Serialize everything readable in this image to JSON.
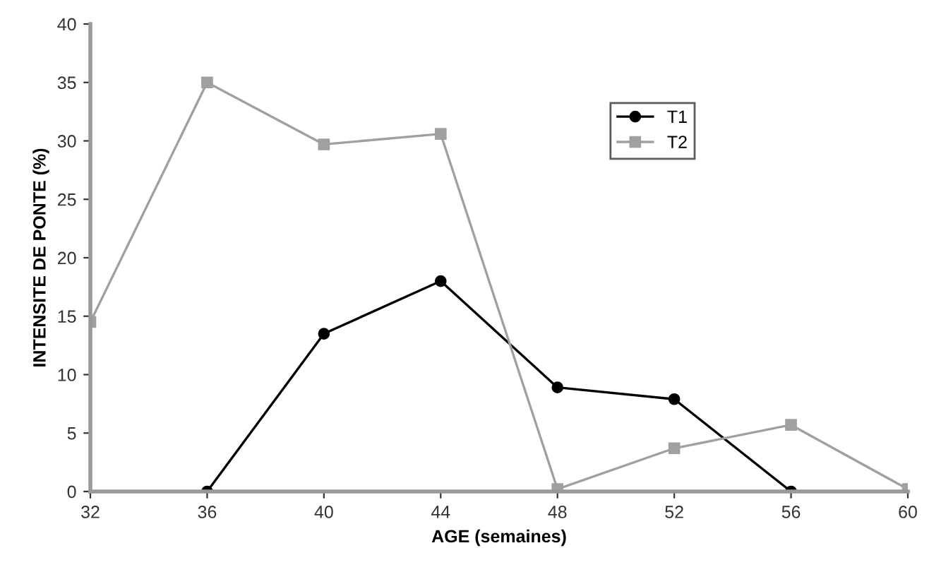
{
  "chart_data": {
    "type": "line",
    "xlabel": "AGE (semaines)",
    "ylabel": "INTENSITE DE PONTE (%)",
    "x": [
      32,
      36,
      40,
      44,
      48,
      52,
      56,
      60
    ],
    "series": [
      {
        "name": "T1",
        "color": "#000000",
        "marker": "circle",
        "values": [
          null,
          0,
          13.5,
          18,
          8.9,
          7.9,
          0,
          null
        ]
      },
      {
        "name": "T2",
        "color": "#a0a0a0",
        "marker": "square",
        "values": [
          14.5,
          35,
          29.7,
          30.6,
          0.2,
          3.7,
          5.7,
          0.2
        ]
      }
    ],
    "xlim": [
      32,
      60
    ],
    "xticks": [
      32,
      36,
      40,
      44,
      48,
      52,
      56,
      60
    ],
    "ylim": [
      0,
      40
    ],
    "yticks": [
      0,
      5,
      10,
      15,
      20,
      25,
      30,
      35,
      40
    ],
    "grid": false,
    "legend": "top right"
  }
}
